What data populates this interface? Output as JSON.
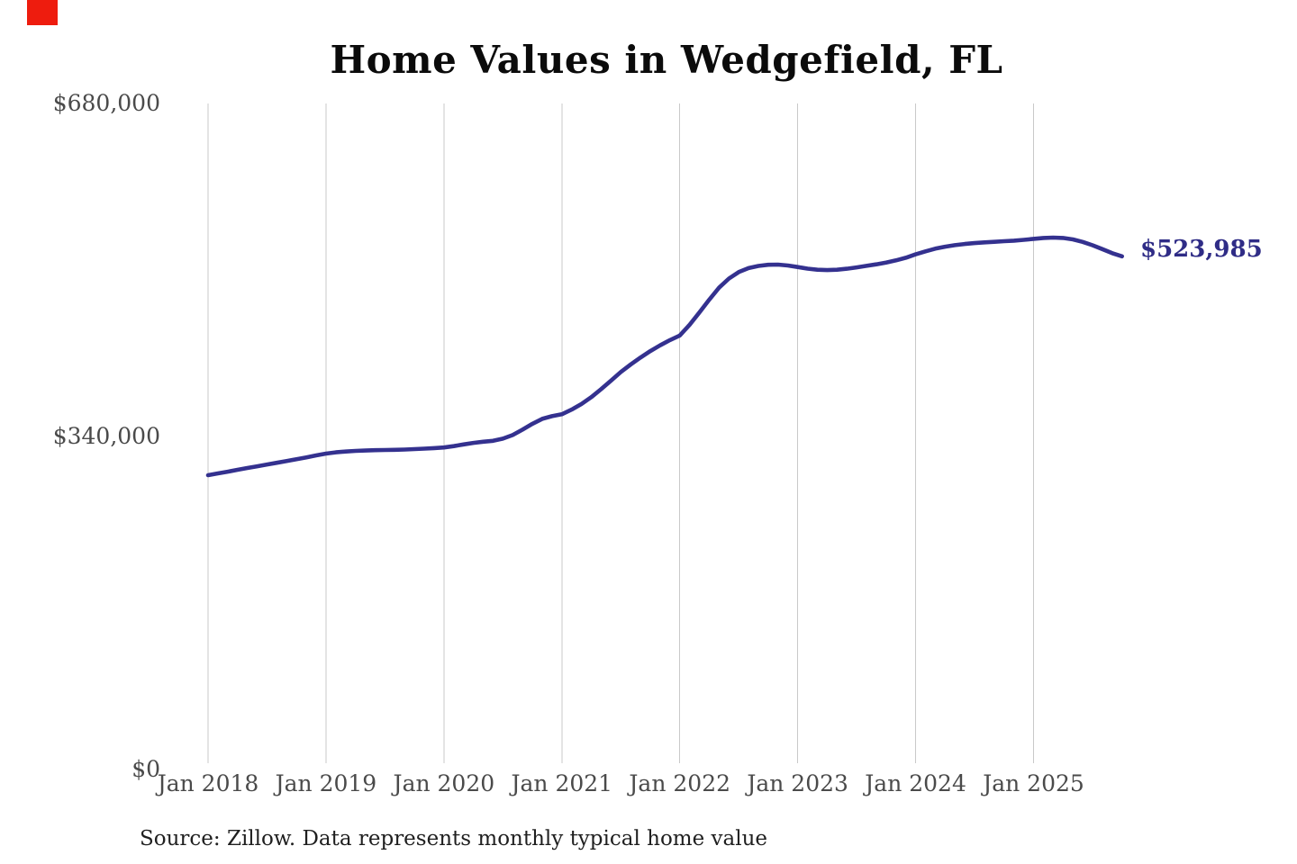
{
  "decor": {
    "red_marker_color": "#ee1c0e"
  },
  "chart_data": {
    "type": "line",
    "title": "Home Values in Wedgefield, FL",
    "source_note": "Source: Zillow. Data represents monthly typical home value",
    "annotation": {
      "label": "$523,985",
      "value": 523985
    },
    "grid": "vertical-yearly",
    "legend_position": "none",
    "x_axis": {
      "tick_labels": [
        "Jan 2018",
        "Jan 2019",
        "Jan 2020",
        "Jan 2021",
        "Jan 2022",
        "Jan 2023",
        "Jan 2024",
        "Jan 2025"
      ]
    },
    "y_axis": {
      "min": 0,
      "max": 680000,
      "ticks": [
        {
          "label": "$0",
          "value": 0
        },
        {
          "label": "$340,000",
          "value": 340000
        },
        {
          "label": "$680,000",
          "value": 680000
        }
      ]
    },
    "series": [
      {
        "name": "Monthly typical home value",
        "interval": "monthly",
        "start": "Jan 2018",
        "end": "Oct 2025",
        "values": [
          300500,
          302300,
          304100,
          306000,
          307800,
          309600,
          311400,
          313200,
          315000,
          316800,
          318700,
          320700,
          322500,
          323800,
          324700,
          325300,
          325700,
          326000,
          326200,
          326400,
          326700,
          327100,
          327600,
          328100,
          328800,
          330200,
          331900,
          333500,
          334700,
          335600,
          337800,
          341500,
          347000,
          353000,
          358000,
          360800,
          362700,
          367500,
          373200,
          380200,
          388300,
          397000,
          405900,
          413500,
          420600,
          427200,
          433100,
          438400,
          443100,
          454000,
          466600,
          479800,
          492000,
          501300,
          507900,
          511900,
          514100,
          515300,
          515500,
          514600,
          513000,
          511400,
          510300,
          509900,
          510300,
          511300,
          512700,
          514200,
          515800,
          517600,
          519800,
          522500,
          526000,
          529000,
          531800,
          533800,
          535400,
          536600,
          537500,
          538200,
          538800,
          539400,
          540000,
          540800,
          541800,
          542700,
          543100,
          542700,
          541200,
          538700,
          535300,
          531300,
          527200,
          523985
        ]
      }
    ],
    "colors": {
      "line": "#34318f",
      "annotation": "#2f2c86",
      "gridline": "#c9c9c9",
      "axis_label": "#4a4a4a",
      "title": "#0b0b0b",
      "source": "#1f1f1f"
    }
  }
}
